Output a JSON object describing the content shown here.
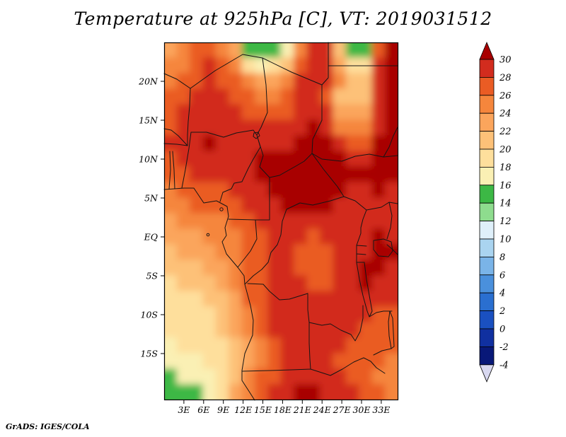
{
  "title": "Temperature at 925hPa [C], VT: 2019031512",
  "footer": {
    "credit": "GrADS: IGES/COLA"
  },
  "axes": {
    "lat_ticks": [
      "20N",
      "15N",
      "10N",
      "5N",
      "EQ",
      "5S",
      "10S",
      "15S"
    ],
    "lon_ticks": [
      "3E",
      "6E",
      "9E",
      "12E",
      "15E",
      "18E",
      "21E",
      "24E",
      "27E",
      "30E",
      "33E"
    ]
  },
  "colorbar": {
    "labels": [
      "30",
      "28",
      "26",
      "24",
      "22",
      "20",
      "18",
      "16",
      "14",
      "12",
      "10",
      "8",
      "6",
      "4",
      "2",
      "0",
      "-2",
      "-4"
    ],
    "colors": [
      "#a80000",
      "#d22c1e",
      "#ea5c24",
      "#f5863c",
      "#fba55c",
      "#fdc178",
      "#fedf9c",
      "#faf0b4",
      "#3cb845",
      "#8edc8e",
      "#dff0fa",
      "#aad4f0",
      "#7ab4e8",
      "#4a90dc",
      "#2a6fd0",
      "#1a50c0",
      "#1030a0",
      "#081878",
      "#d8d8f0"
    ]
  },
  "chart_data": {
    "type": "heatmap",
    "title": "Temperature at 925hPa [C], VT: 2019031512",
    "variable": "Temperature",
    "level": "925hPa",
    "units": "C",
    "valid_time": "2019031512",
    "source": "GrADS: IGES/COLA",
    "lon_range_deg_east": [
      0,
      35.5
    ],
    "lat_range_deg_north": [
      -21,
      25
    ],
    "contour_levels_c": [
      -4,
      -2,
      0,
      2,
      4,
      6,
      8,
      10,
      12,
      14,
      16,
      18,
      20,
      22,
      24,
      26,
      28,
      30
    ],
    "legend_position": "right",
    "grid": {
      "lon_centers": [
        1,
        3,
        5,
        7,
        9,
        11,
        13,
        15,
        17,
        19,
        21,
        23,
        25,
        27,
        29,
        31,
        33,
        35
      ],
      "lat_centers": [
        24,
        22,
        20,
        18,
        16,
        14,
        12,
        10,
        8,
        6,
        4,
        2,
        0,
        -2,
        -4,
        -6,
        -8,
        -10,
        -12,
        -14,
        -16,
        -18,
        -20
      ],
      "values_c": [
        [
          23,
          24,
          26,
          27,
          25,
          23,
          15,
          15,
          15,
          17,
          25,
          29,
          28,
          21,
          15,
          15,
          27,
          30
        ],
        [
          24,
          25,
          27,
          28,
          26,
          24,
          19,
          17,
          18,
          21,
          27,
          29,
          28,
          22,
          19,
          19,
          28,
          30
        ],
        [
          25,
          26,
          27,
          28,
          27,
          26,
          24,
          22,
          22,
          24,
          28,
          29,
          28,
          24,
          21,
          21,
          28,
          30
        ],
        [
          26,
          27,
          28,
          28,
          28,
          27,
          26,
          25,
          25,
          26,
          28,
          29,
          27,
          20,
          20,
          21,
          28,
          30
        ],
        [
          27,
          28,
          28,
          29,
          29,
          28,
          27,
          27,
          27,
          27,
          29,
          29,
          28,
          22,
          22,
          23,
          29,
          31
        ],
        [
          27,
          28,
          29,
          29,
          29,
          29,
          28,
          28,
          28,
          28,
          29,
          30,
          29,
          25,
          24,
          25,
          29,
          31
        ],
        [
          28,
          29,
          29,
          30,
          29,
          29,
          29,
          29,
          29,
          29,
          30,
          31,
          30,
          28,
          27,
          27,
          30,
          31
        ],
        [
          27,
          28,
          29,
          29,
          29,
          29,
          29,
          30,
          30,
          30,
          31,
          31,
          31,
          30,
          29,
          29,
          31,
          31
        ],
        [
          26,
          27,
          28,
          28,
          28,
          29,
          29,
          30,
          31,
          31,
          31,
          31,
          31,
          30,
          30,
          30,
          31,
          30
        ],
        [
          25,
          26,
          27,
          27,
          27,
          28,
          29,
          29,
          30,
          31,
          31,
          31,
          30,
          30,
          29,
          29,
          30,
          29
        ],
        [
          24,
          25,
          26,
          26,
          26,
          27,
          28,
          29,
          29,
          30,
          30,
          30,
          30,
          29,
          29,
          28,
          29,
          28
        ],
        [
          23,
          24,
          24,
          25,
          25,
          26,
          27,
          28,
          29,
          29,
          29,
          29,
          29,
          29,
          28,
          28,
          29,
          28
        ],
        [
          22,
          23,
          23,
          24,
          24,
          25,
          26,
          27,
          28,
          29,
          28,
          27,
          28,
          29,
          28,
          28,
          30,
          29
        ],
        [
          21,
          22,
          22,
          23,
          24,
          25,
          26,
          27,
          28,
          28,
          27,
          26,
          27,
          29,
          29,
          29,
          31,
          30
        ],
        [
          20,
          21,
          21,
          22,
          23,
          25,
          26,
          27,
          28,
          28,
          27,
          26,
          27,
          28,
          29,
          30,
          30,
          29
        ],
        [
          19,
          20,
          20,
          21,
          22,
          24,
          26,
          27,
          28,
          28,
          28,
          27,
          27,
          28,
          29,
          30,
          29,
          28
        ],
        [
          19,
          19,
          19,
          20,
          21,
          23,
          26,
          27,
          28,
          29,
          29,
          28,
          28,
          28,
          29,
          29,
          28,
          28
        ],
        [
          18,
          19,
          19,
          19,
          20,
          22,
          25,
          27,
          28,
          29,
          29,
          29,
          29,
          29,
          28,
          28,
          27,
          27
        ],
        [
          18,
          18,
          18,
          19,
          20,
          22,
          24,
          26,
          28,
          29,
          29,
          29,
          29,
          28,
          28,
          27,
          27,
          26
        ],
        [
          17,
          18,
          18,
          18,
          19,
          21,
          23,
          25,
          27,
          28,
          29,
          29,
          28,
          28,
          27,
          27,
          26,
          26
        ],
        [
          16,
          17,
          17,
          18,
          19,
          20,
          23,
          25,
          27,
          28,
          28,
          28,
          28,
          27,
          27,
          26,
          26,
          25
        ],
        [
          15,
          16,
          16,
          17,
          18,
          21,
          24,
          26,
          27,
          28,
          28,
          29,
          28,
          28,
          27,
          26,
          25,
          25
        ],
        [
          14,
          15,
          15,
          16,
          18,
          22,
          25,
          27,
          28,
          29,
          30,
          30,
          29,
          29,
          28,
          27,
          26,
          25
        ]
      ]
    }
  }
}
